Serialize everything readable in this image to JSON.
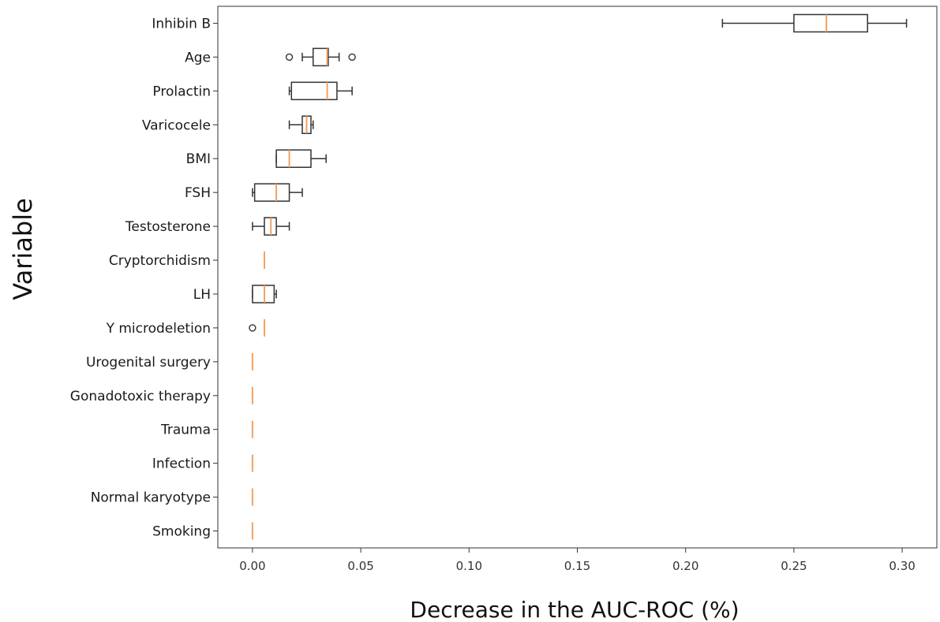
{
  "chart_data": {
    "type": "box",
    "orientation": "horizontal",
    "xlabel": "Decrease in the AUC-ROC (%)",
    "ylabel": "Variable",
    "xlim": [
      -0.016,
      0.316
    ],
    "xticks": [
      0.0,
      0.05,
      0.1,
      0.15,
      0.2,
      0.25,
      0.3
    ],
    "xtick_labels": [
      "0.00",
      "0.05",
      "0.10",
      "0.15",
      "0.20",
      "0.25",
      "0.30"
    ],
    "grid": false,
    "colors": {
      "box": "#333333",
      "median": "#f4a261",
      "axes": "#333333"
    },
    "categories": [
      "Inhibin B",
      "Age",
      "Prolactin",
      "Varicocele",
      "BMI",
      "FSH",
      "Testosterone",
      "Cryptorchidism",
      "LH",
      "Y microdeletion",
      "Urogenital surgery",
      "Gonadotoxic therapy",
      "Trauma",
      "Infection",
      "Normal karyotype",
      "Smoking"
    ],
    "boxes": [
      {
        "label": "Inhibin B",
        "whislo": 0.217,
        "q1": 0.25,
        "med": 0.265,
        "q3": 0.284,
        "whishi": 0.302,
        "fliers": []
      },
      {
        "label": "Age",
        "whislo": 0.023,
        "q1": 0.028,
        "med": 0.0345,
        "q3": 0.035,
        "whishi": 0.04,
        "fliers": [
          0.017,
          0.046
        ]
      },
      {
        "label": "Prolactin",
        "whislo": 0.017,
        "q1": 0.018,
        "med": 0.0345,
        "q3": 0.039,
        "whishi": 0.046,
        "fliers": []
      },
      {
        "label": "Varicocele",
        "whislo": 0.017,
        "q1": 0.023,
        "med": 0.025,
        "q3": 0.027,
        "whishi": 0.028,
        "fliers": []
      },
      {
        "label": "BMI",
        "whislo": 0.011,
        "q1": 0.011,
        "med": 0.017,
        "q3": 0.027,
        "whishi": 0.034,
        "fliers": []
      },
      {
        "label": "FSH",
        "whislo": 0.0,
        "q1": 0.001,
        "med": 0.011,
        "q3": 0.017,
        "whishi": 0.023,
        "fliers": []
      },
      {
        "label": "Testosterone",
        "whislo": 0.0,
        "q1": 0.0055,
        "med": 0.0085,
        "q3": 0.011,
        "whishi": 0.017,
        "fliers": []
      },
      {
        "label": "Cryptorchidism",
        "whislo": 0.0055,
        "q1": 0.0055,
        "med": 0.0055,
        "q3": 0.0055,
        "whishi": 0.0055,
        "fliers": []
      },
      {
        "label": "LH",
        "whislo": 0.0,
        "q1": 0.0,
        "med": 0.0055,
        "q3": 0.01,
        "whishi": 0.011,
        "fliers": []
      },
      {
        "label": "Y microdeletion",
        "whislo": 0.0055,
        "q1": 0.0055,
        "med": 0.0055,
        "q3": 0.0055,
        "whishi": 0.0055,
        "fliers": [
          0.0
        ]
      },
      {
        "label": "Urogenital surgery",
        "whislo": 0.0,
        "q1": 0.0,
        "med": 0.0,
        "q3": 0.0,
        "whishi": 0.0,
        "fliers": []
      },
      {
        "label": "Gonadotoxic therapy",
        "whislo": 0.0,
        "q1": 0.0,
        "med": 0.0,
        "q3": 0.0,
        "whishi": 0.0,
        "fliers": []
      },
      {
        "label": "Trauma",
        "whislo": 0.0,
        "q1": 0.0,
        "med": 0.0,
        "q3": 0.0,
        "whishi": 0.0,
        "fliers": []
      },
      {
        "label": "Infection",
        "whislo": 0.0,
        "q1": 0.0,
        "med": 0.0,
        "q3": 0.0,
        "whishi": 0.0,
        "fliers": []
      },
      {
        "label": "Normal karyotype",
        "whislo": 0.0,
        "q1": 0.0,
        "med": 0.0,
        "q3": 0.0,
        "whishi": 0.0,
        "fliers": []
      },
      {
        "label": "Smoking",
        "whislo": 0.0,
        "q1": 0.0,
        "med": 0.0,
        "q3": 0.0,
        "whishi": 0.0,
        "fliers": []
      }
    ]
  }
}
